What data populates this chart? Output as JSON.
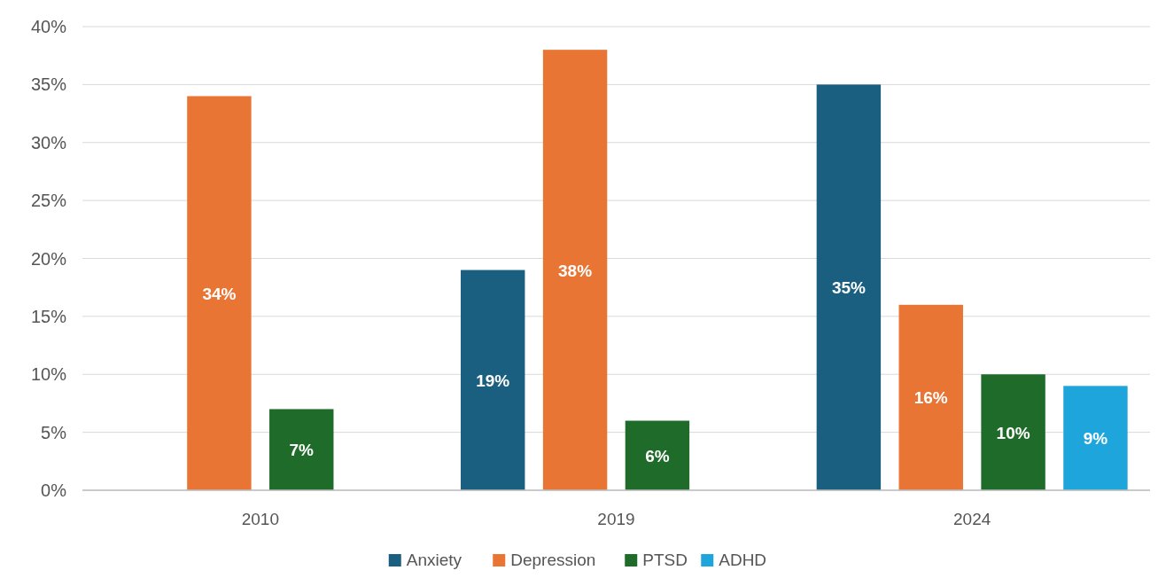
{
  "chart_data": {
    "type": "bar",
    "categories": [
      "2010",
      "2019",
      "2024"
    ],
    "series": [
      {
        "name": "Anxiety",
        "color": "#1a5e80",
        "values": [
          null,
          19,
          35
        ]
      },
      {
        "name": "Depression",
        "color": "#e87533",
        "values": [
          34,
          38,
          16
        ]
      },
      {
        "name": "PTSD",
        "color": "#1e6b2a",
        "values": [
          7,
          6,
          10
        ]
      },
      {
        "name": "ADHD",
        "color": "#1ea6dc",
        "values": [
          null,
          null,
          9
        ]
      }
    ],
    "ylim": [
      0,
      40
    ],
    "yticks": [
      {
        "value": 0,
        "label": "0%"
      },
      {
        "value": 5,
        "label": "5%"
      },
      {
        "value": 10,
        "label": "10%"
      },
      {
        "value": 15,
        "label": "15%"
      },
      {
        "value": 20,
        "label": "20%"
      },
      {
        "value": 25,
        "label": "25%"
      },
      {
        "value": 30,
        "label": "30%"
      },
      {
        "value": 35,
        "label": "35%"
      },
      {
        "value": 40,
        "label": "40%"
      }
    ],
    "value_labels": [
      [
        null,
        "19%",
        "35%"
      ],
      [
        "34%",
        "38%",
        "16%"
      ],
      [
        "7%",
        "6%",
        "10%"
      ],
      [
        null,
        null,
        "9%"
      ]
    ],
    "grid": "y",
    "legend": "bottom"
  }
}
